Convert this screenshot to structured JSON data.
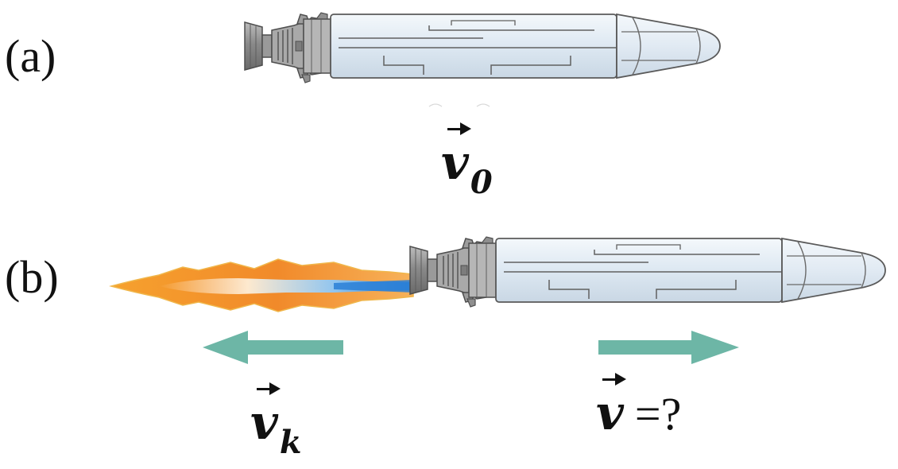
{
  "panels": {
    "a": {
      "label": "(a)"
    },
    "b": {
      "label": "(b)"
    }
  },
  "labels": {
    "v0": {
      "symbol": "v",
      "subscript": "0"
    },
    "vk": {
      "symbol": "v",
      "subscript": "k"
    },
    "v": {
      "symbol": "v",
      "rest": "=?"
    }
  },
  "colors": {
    "rocket_body": "#dde8f2",
    "rocket_outline": "#555555",
    "nozzle": "#8e8e8e",
    "arrow": "#6db6a6",
    "flame_outer": "#f8a53a",
    "flame_inner": "#fde7c8",
    "flame_core": "#2a7fd6"
  }
}
